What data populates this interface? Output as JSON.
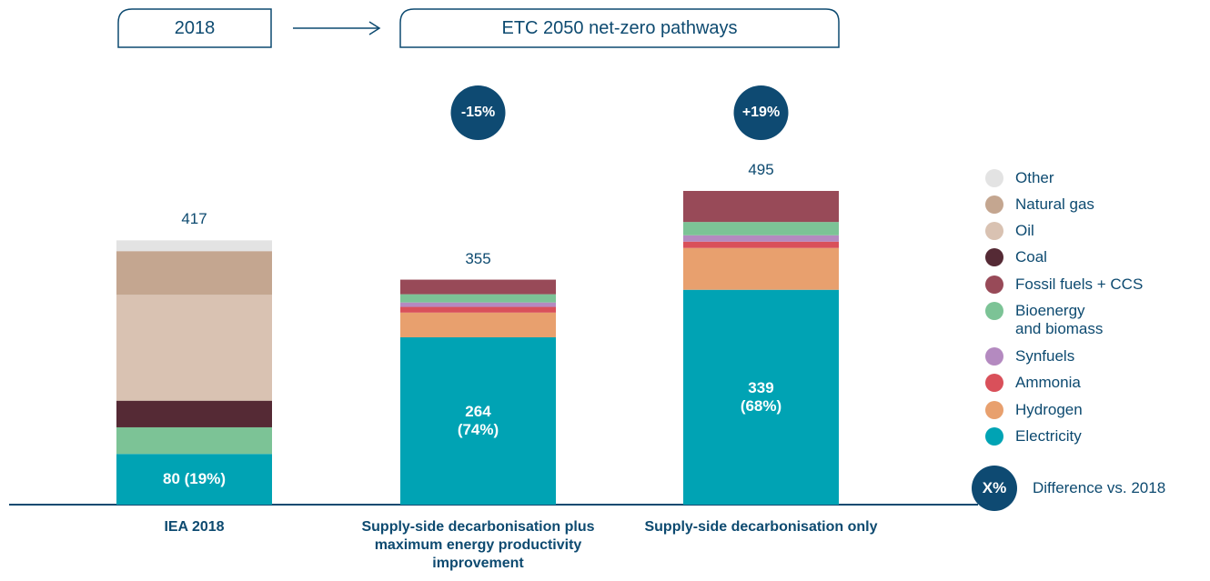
{
  "header": {
    "left": "2018",
    "right": "ETC 2050 net-zero pathways"
  },
  "chart_data": {
    "type": "stacked_bar",
    "categories": [
      "IEA 2018",
      "Supply-side decarbonisation plus maximum energy productivity improvement",
      "Supply-side decarbonisation only"
    ],
    "totals": [
      417,
      355,
      495
    ],
    "difference_labels": [
      null,
      "-15%",
      "+19%"
    ],
    "series": [
      {
        "name": "Electricity",
        "color": "#00a3b4",
        "values": [
          80,
          264,
          339
        ],
        "value_labels": [
          "80 (19%)",
          "264\n(74%)",
          "339\n(68%)"
        ]
      },
      {
        "name": "Hydrogen",
        "color": "#e8a06e",
        "values": [
          null,
          39,
          66
        ]
      },
      {
        "name": "Ammonia",
        "color": "#d9505a",
        "values": [
          null,
          9,
          10
        ]
      },
      {
        "name": "Synfuels",
        "color": "#b48ac0",
        "values": [
          null,
          7,
          10
        ]
      },
      {
        "name": "Bioenergy\nand biomass",
        "color": "#7cc396",
        "values": [
          42,
          13,
          21
        ]
      },
      {
        "name": "Fossil fuels + CCS",
        "color": "#984a58",
        "values": [
          null,
          23,
          49
        ]
      },
      {
        "name": "Coal",
        "color": "#552a35",
        "values": [
          42,
          null,
          null
        ]
      },
      {
        "name": "Oil",
        "color": "#d9c2b2",
        "values": [
          167,
          null,
          null
        ]
      },
      {
        "name": "Natural gas",
        "color": "#c4a690",
        "values": [
          69,
          null,
          null
        ]
      },
      {
        "name": "Other",
        "color": "#e3e3e3",
        "values": [
          17,
          null,
          null
        ]
      }
    ],
    "legend_badge": "X%",
    "legend_badge_text": "Difference vs. 2018"
  }
}
